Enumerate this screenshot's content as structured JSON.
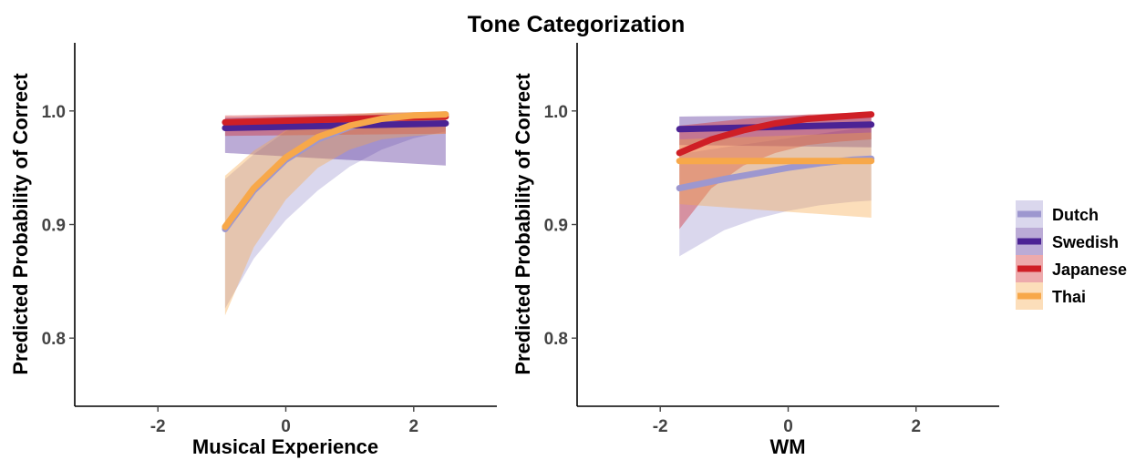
{
  "chart_data": {
    "title": "Tone Categorization",
    "type": "line",
    "legend": {
      "position": "right",
      "entries": [
        {
          "name": "Dutch",
          "color": "#9d97cf"
        },
        {
          "name": "Swedish",
          "color": "#4b2394"
        },
        {
          "name": "Japanese",
          "color": "#cf1f26"
        },
        {
          "name": "Thai",
          "color": "#f7a84a"
        }
      ]
    },
    "grid": false,
    "panels": [
      {
        "xlabel": "Musical Experience",
        "ylabel": "Predicted Probability of Correct",
        "xlim": [
          -3.3,
          3.3
        ],
        "ylim": [
          0.74,
          1.06
        ],
        "xticks": [
          -2,
          0,
          2
        ],
        "xtick_labels": [
          "-2",
          "0",
          "2"
        ],
        "yticks": [
          0.8,
          0.9,
          1.0
        ],
        "ytick_labels": [
          "0.8",
          "0.9",
          "1.0"
        ],
        "series": [
          {
            "name": "Dutch",
            "color": "#9d97cf",
            "x": [
              -0.95,
              -0.5,
              0.0,
              0.5,
              1.0,
              1.5,
              2.0,
              2.5
            ],
            "y": [
              0.896,
              0.93,
              0.957,
              0.975,
              0.986,
              0.992,
              0.995,
              0.997
            ],
            "lower": [
              0.826,
              0.87,
              0.904,
              0.93,
              0.951,
              0.966,
              0.976,
              0.982
            ],
            "upper": [
              0.94,
              0.962,
              0.982,
              0.992,
              0.997,
              0.998,
              0.999,
              0.999
            ]
          },
          {
            "name": "Swedish",
            "color": "#4b2394",
            "x": [
              -0.95,
              2.5
            ],
            "y": [
              0.985,
              0.989
            ],
            "lower": [
              0.963,
              0.952
            ],
            "upper": [
              0.994,
              0.998
            ]
          },
          {
            "name": "Japanese",
            "color": "#cf1f26",
            "x": [
              -0.95,
              2.5
            ],
            "y": [
              0.99,
              0.995
            ],
            "lower": [
              0.978,
              0.98
            ],
            "upper": [
              0.996,
              0.999
            ]
          },
          {
            "name": "Thai",
            "color": "#f7a84a",
            "x": [
              -0.95,
              -0.5,
              0.0,
              0.5,
              1.0,
              1.5,
              2.0,
              2.5
            ],
            "y": [
              0.898,
              0.932,
              0.959,
              0.977,
              0.987,
              0.993,
              0.996,
              0.997
            ],
            "lower": [
              0.82,
              0.88,
              0.922,
              0.95,
              0.966,
              0.975,
              0.978,
              0.98
            ],
            "upper": [
              0.943,
              0.965,
              0.983,
              0.993,
              0.997,
              0.999,
              0.999,
              0.999
            ]
          }
        ]
      },
      {
        "xlabel": "WM",
        "ylabel": "Predicted Probability of Correct",
        "xlim": [
          -3.3,
          3.3
        ],
        "ylim": [
          0.74,
          1.06
        ],
        "xticks": [
          -2,
          0,
          2
        ],
        "xtick_labels": [
          "-2",
          "0",
          "2"
        ],
        "yticks": [
          0.8,
          0.9,
          1.0
        ],
        "ytick_labels": [
          "0.8",
          "0.9",
          "1.0"
        ],
        "series": [
          {
            "name": "Dutch",
            "color": "#9d97cf",
            "x": [
              -1.7,
              -1.0,
              -0.5,
              0.0,
              0.5,
              1.0,
              1.3
            ],
            "y": [
              0.932,
              0.94,
              0.945,
              0.95,
              0.954,
              0.957,
              0.958
            ],
            "lower": [
              0.872,
              0.895,
              0.905,
              0.912,
              0.917,
              0.92,
              0.921
            ],
            "upper": [
              0.962,
              0.968,
              0.972,
              0.976,
              0.98,
              0.984,
              0.986
            ]
          },
          {
            "name": "Swedish",
            "color": "#4b2394",
            "x": [
              -1.7,
              1.3
            ],
            "y": [
              0.984,
              0.988
            ],
            "lower": [
              0.97,
              0.968
            ],
            "upper": [
              0.995,
              0.997
            ]
          },
          {
            "name": "Japanese",
            "color": "#cf1f26",
            "x": [
              -1.7,
              -1.2,
              -0.7,
              -0.2,
              0.3,
              0.8,
              1.3
            ],
            "y": [
              0.963,
              0.975,
              0.983,
              0.989,
              0.993,
              0.995,
              0.997
            ],
            "lower": [
              0.896,
              0.932,
              0.952,
              0.963,
              0.97,
              0.973,
              0.975
            ],
            "upper": [
              0.987,
              0.99,
              0.993,
              0.995,
              0.997,
              0.998,
              0.999
            ]
          },
          {
            "name": "Thai",
            "color": "#f7a84a",
            "x": [
              -1.7,
              1.3
            ],
            "y": [
              0.956,
              0.956
            ],
            "lower": [
              0.918,
              0.906
            ],
            "upper": [
              0.975,
              0.981
            ]
          }
        ]
      }
    ]
  }
}
